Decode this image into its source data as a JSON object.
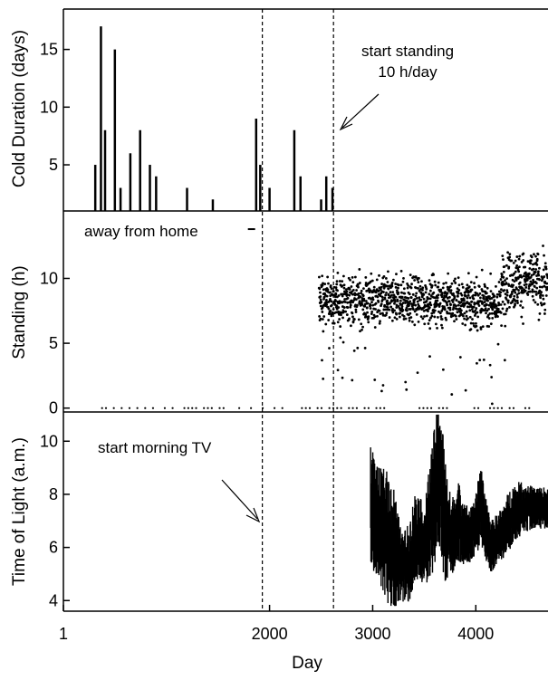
{
  "chart_data": [
    {
      "type": "bar",
      "ylabel": "Cold Duration (days)",
      "xlabel": "",
      "xlim": [
        1,
        4700
      ],
      "ylim": [
        1,
        18.5
      ],
      "yticks": [
        5,
        10,
        15
      ],
      "bars": [
        {
          "x": 310,
          "y": 5
        },
        {
          "x": 365,
          "y": 17
        },
        {
          "x": 405,
          "y": 8
        },
        {
          "x": 500,
          "y": 15
        },
        {
          "x": 555,
          "y": 3
        },
        {
          "x": 650,
          "y": 6
        },
        {
          "x": 745,
          "y": 8
        },
        {
          "x": 840,
          "y": 5
        },
        {
          "x": 900,
          "y": 4
        },
        {
          "x": 1200,
          "y": 3
        },
        {
          "x": 1450,
          "y": 2
        },
        {
          "x": 1870,
          "y": 9
        },
        {
          "x": 1910,
          "y": 5
        },
        {
          "x": 2000,
          "y": 3
        },
        {
          "x": 2240,
          "y": 8
        },
        {
          "x": 2300,
          "y": 4
        },
        {
          "x": 2500,
          "y": 2
        },
        {
          "x": 2550,
          "y": 4
        },
        {
          "x": 2610,
          "y": 3
        }
      ],
      "annotations": [
        {
          "text_lines": [
            "start standing",
            "10 h/day"
          ],
          "arrow_to_x": 2640
        }
      ]
    },
    {
      "type": "scatter",
      "ylabel": "Standing (h)",
      "xlabel": "",
      "xlim": [
        1,
        4700
      ],
      "ylim": [
        -0.3,
        15.2
      ],
      "yticks": [
        0,
        5,
        10
      ],
      "segments": [
        {
          "x_start": 2480,
          "x_end": 3950,
          "mean": 8.3,
          "spread": 1.3
        },
        {
          "x_start": 3950,
          "x_end": 4250,
          "mean": 8.0,
          "spread": 1.4
        },
        {
          "x_start": 4250,
          "x_end": 4700,
          "mean": 9.7,
          "spread": 1.6
        }
      ],
      "annotations": [
        {
          "text": "away from home",
          "x_start": 1790,
          "x_end": 1860,
          "y": 13.8
        }
      ]
    },
    {
      "type": "line",
      "ylabel": "Time of Light (a.m.)",
      "xlabel": "Day",
      "xlim": [
        1,
        4700
      ],
      "ylim": [
        3.6,
        11.1
      ],
      "yticks": [
        4,
        6,
        8,
        10
      ],
      "xticks": [
        1,
        2000,
        3000,
        4000
      ],
      "series": [
        {
          "x": [
            2980,
            3050,
            3120,
            3200,
            3280,
            3350,
            3420,
            3500,
            3580,
            3650,
            3700,
            3760,
            3830,
            3900,
            3960,
            4050,
            4150,
            4250,
            4350,
            4450,
            4550,
            4700
          ],
          "y": [
            7.5,
            7.0,
            6.5,
            6.0,
            5.2,
            5.4,
            6.5,
            6.0,
            7.5,
            9.0,
            7.0,
            6.3,
            7.0,
            6.5,
            6.5,
            7.5,
            6.0,
            6.5,
            7.2,
            7.5,
            7.5,
            7.5
          ],
          "spread": [
            2.5,
            2.0,
            2.5,
            2.5,
            1.3,
            1.5,
            1.8,
            1.5,
            2.5,
            3.0,
            2.5,
            1.5,
            1.5,
            1.2,
            1.0,
            1.5,
            1.0,
            1.0,
            1.2,
            1.0,
            0.8,
            0.8
          ]
        }
      ],
      "annotations": [
        {
          "text": "start morning TV",
          "arrow_to_x": 1920,
          "arrow_to_y": 7.0
        }
      ]
    }
  ],
  "reference_lines_x": [
    1930,
    2620
  ]
}
